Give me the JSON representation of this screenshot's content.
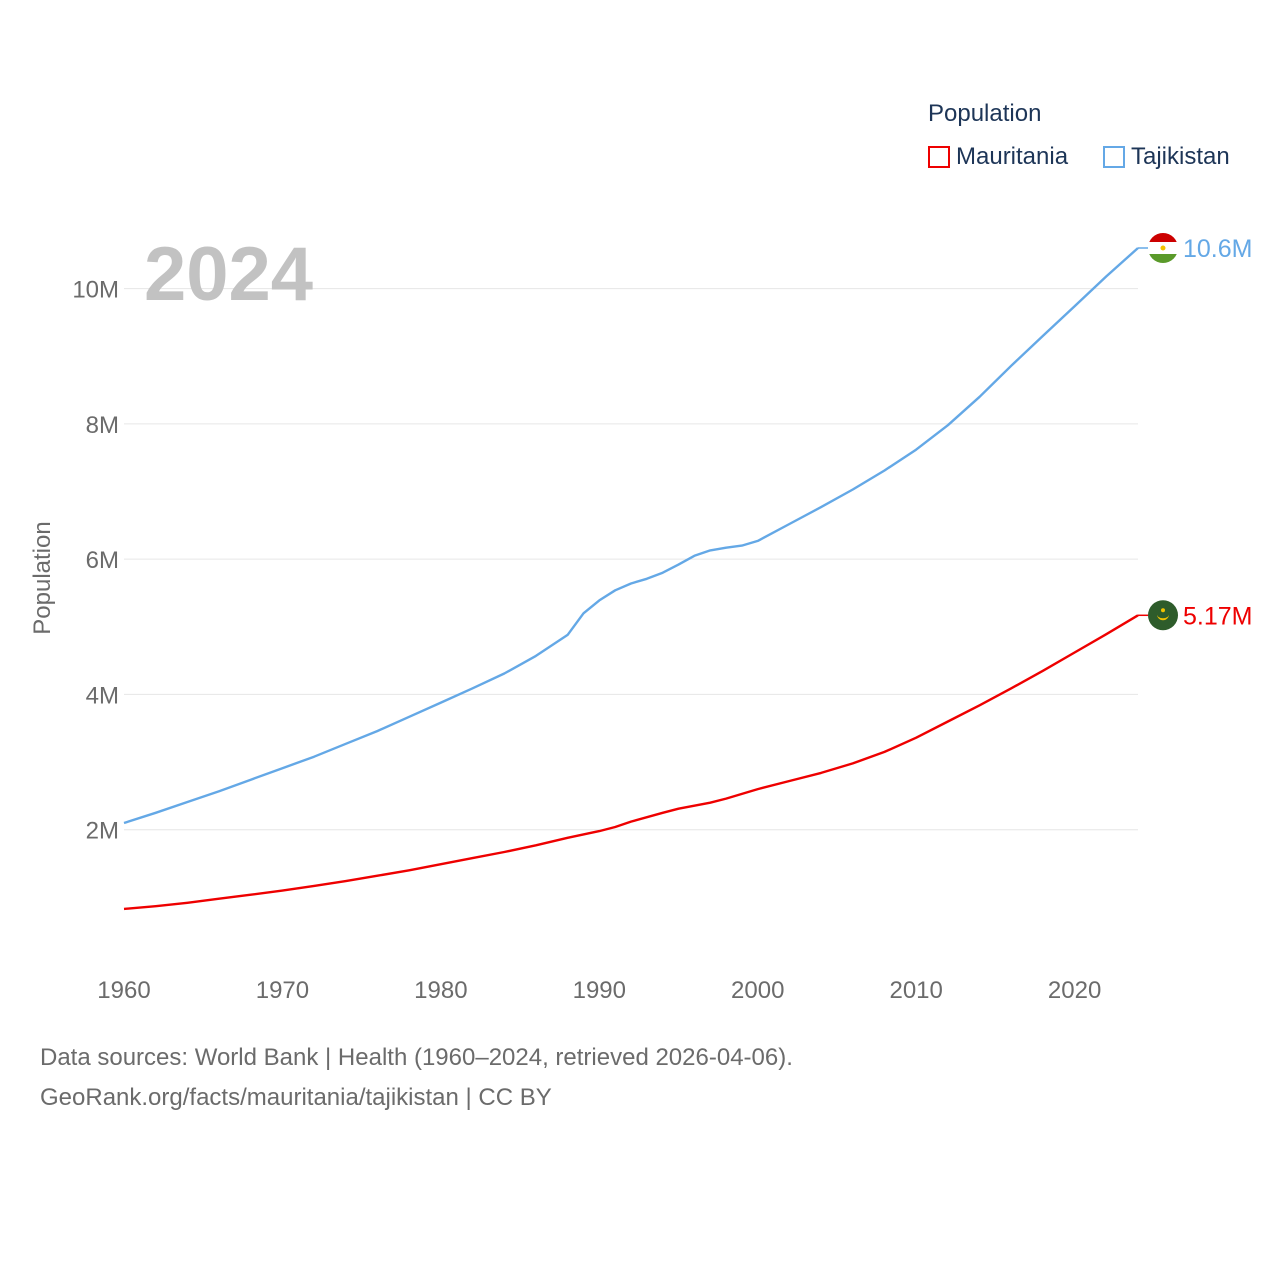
{
  "legend": {
    "title": "Population",
    "items": [
      {
        "label": "Mauritania",
        "color": "#ee0000"
      },
      {
        "label": "Tajikistan",
        "color": "#64a8e6"
      }
    ]
  },
  "footer": {
    "line1": "Data sources: World Bank | Health (1960–2024, retrieved 2026-04-06).",
    "line2": "GeoRank.org/facts/mauritania/tajikistan | CC BY"
  },
  "chart_data": {
    "type": "line",
    "title": "Population",
    "year_label": "2024",
    "xlabel": "",
    "ylabel": "Population",
    "xlim": [
      1960,
      2024
    ],
    "ylim": [
      0,
      10600000
    ],
    "x_ticks": [
      1960,
      1970,
      1980,
      1990,
      2000,
      2010,
      2020
    ],
    "y_ticks": [
      {
        "value": 2000000,
        "label": "2M"
      },
      {
        "value": 4000000,
        "label": "4M"
      },
      {
        "value": 6000000,
        "label": "6M"
      },
      {
        "value": 8000000,
        "label": "8M"
      },
      {
        "value": 10000000,
        "label": "10M"
      }
    ],
    "grid": true,
    "series": [
      {
        "name": "Mauritania",
        "color": "#ee0000",
        "end_label": "5.17M",
        "flag": "mauritania",
        "points": [
          [
            1960,
            830000
          ],
          [
            1962,
            870000
          ],
          [
            1964,
            920000
          ],
          [
            1966,
            980000
          ],
          [
            1968,
            1040000
          ],
          [
            1970,
            1100000
          ],
          [
            1972,
            1170000
          ],
          [
            1974,
            1240000
          ],
          [
            1976,
            1320000
          ],
          [
            1978,
            1400000
          ],
          [
            1980,
            1490000
          ],
          [
            1982,
            1580000
          ],
          [
            1984,
            1670000
          ],
          [
            1986,
            1770000
          ],
          [
            1988,
            1880000
          ],
          [
            1990,
            1980000
          ],
          [
            1991,
            2040000
          ],
          [
            1992,
            2120000
          ],
          [
            1994,
            2250000
          ],
          [
            1995,
            2310000
          ],
          [
            1997,
            2400000
          ],
          [
            1998,
            2460000
          ],
          [
            2000,
            2600000
          ],
          [
            2002,
            2720000
          ],
          [
            2004,
            2840000
          ],
          [
            2006,
            2980000
          ],
          [
            2008,
            3150000
          ],
          [
            2010,
            3360000
          ],
          [
            2012,
            3600000
          ],
          [
            2014,
            3840000
          ],
          [
            2016,
            4090000
          ],
          [
            2018,
            4350000
          ],
          [
            2020,
            4620000
          ],
          [
            2022,
            4890000
          ],
          [
            2024,
            5170000
          ]
        ]
      },
      {
        "name": "Tajikistan",
        "color": "#64a8e6",
        "end_label": "10.6M",
        "flag": "tajikistan",
        "points": [
          [
            1960,
            2100000
          ],
          [
            1962,
            2250000
          ],
          [
            1964,
            2410000
          ],
          [
            1966,
            2570000
          ],
          [
            1968,
            2740000
          ],
          [
            1970,
            2910000
          ],
          [
            1972,
            3080000
          ],
          [
            1974,
            3270000
          ],
          [
            1976,
            3460000
          ],
          [
            1978,
            3670000
          ],
          [
            1980,
            3880000
          ],
          [
            1982,
            4090000
          ],
          [
            1984,
            4310000
          ],
          [
            1986,
            4570000
          ],
          [
            1988,
            4880000
          ],
          [
            1989,
            5200000
          ],
          [
            1990,
            5390000
          ],
          [
            1991,
            5540000
          ],
          [
            1992,
            5640000
          ],
          [
            1993,
            5710000
          ],
          [
            1994,
            5800000
          ],
          [
            1995,
            5920000
          ],
          [
            1996,
            6050000
          ],
          [
            1997,
            6130000
          ],
          [
            1998,
            6170000
          ],
          [
            1999,
            6200000
          ],
          [
            2000,
            6270000
          ],
          [
            2002,
            6520000
          ],
          [
            2004,
            6770000
          ],
          [
            2006,
            7030000
          ],
          [
            2008,
            7310000
          ],
          [
            2010,
            7620000
          ],
          [
            2012,
            7980000
          ],
          [
            2014,
            8400000
          ],
          [
            2016,
            8860000
          ],
          [
            2018,
            9300000
          ],
          [
            2020,
            9740000
          ],
          [
            2022,
            10180000
          ],
          [
            2024,
            10600000
          ]
        ]
      }
    ]
  }
}
